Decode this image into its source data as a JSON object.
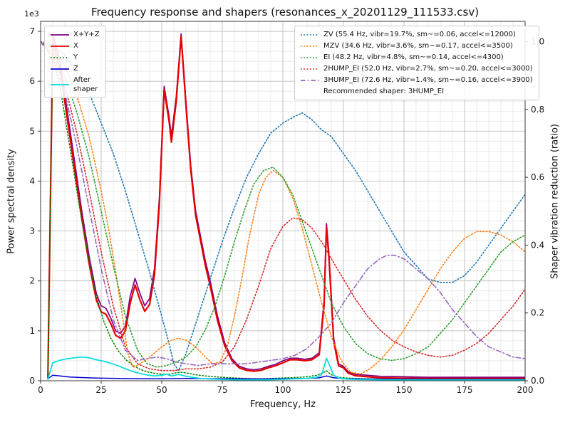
{
  "title": "Frequency response and shapers (resonances_x_20201129_111533.csv)",
  "axes": {
    "x": {
      "label": "Frequency, Hz",
      "min": 0,
      "max": 200,
      "major_ticks": [
        0,
        25,
        50,
        75,
        100,
        125,
        150,
        175,
        200
      ],
      "minor_step": 5
    },
    "y_left": {
      "label": "Power spectral density",
      "offset_text": "1e3",
      "min": 0,
      "max": 7200,
      "major_ticks": [
        0,
        1000,
        2000,
        3000,
        4000,
        5000,
        6000,
        7000
      ],
      "tick_labels": [
        "0",
        "1",
        "2",
        "3",
        "4",
        "5",
        "6",
        "7"
      ],
      "minor_step": 200
    },
    "y_right": {
      "label": "Shaper vibration reduction (ratio)",
      "min": 0,
      "max": 1.06,
      "major_ticks": [
        0,
        0.2,
        0.4,
        0.6,
        0.8,
        1.0
      ],
      "tick_labels": [
        "0.0",
        "0.2",
        "0.4",
        "0.6",
        "0.8",
        "1.0"
      ]
    }
  },
  "legend_psd": {
    "items": [
      {
        "label": "X+Y+Z",
        "color": "#800080",
        "dash": "solid"
      },
      {
        "label": "X",
        "color": "#e60000",
        "dash": "solid"
      },
      {
        "label": "Y",
        "color": "#008000",
        "dash": "dotted"
      },
      {
        "label": "Z",
        "color": "#0000cc",
        "dash": "solid"
      },
      {
        "label": "After\nshaper",
        "color": "#00dcdc",
        "dash": "solid"
      }
    ]
  },
  "legend_shapers": {
    "items": [
      {
        "label": "ZV (55.4 Hz, vibr=19.7%, sm~=0.06, accel<=12000)",
        "color": "#1f77b4",
        "dash": "dotted"
      },
      {
        "label": "MZV (34.6 Hz, vibr=3.6%, sm~=0.17, accel<=3500)",
        "color": "#ff7f0e",
        "dash": "dotted"
      },
      {
        "label": "EI (48.2 Hz, vibr=4.8%, sm~=0.14, accel<=4300)",
        "color": "#2ca02c",
        "dash": "dotted"
      },
      {
        "label": "2HUMP_EI (52.0 Hz, vibr=2.7%, sm~=0.20, accel<=3000)",
        "color": "#d62728",
        "dash": "dotted"
      },
      {
        "label": "3HUMP_EI (72.6 Hz, vibr=1.4%, sm~=0.16, accel<=3900)",
        "color": "#9467bd",
        "dash": "dashdot"
      },
      {
        "label": "Recommended shaper: 3HUMP_EI",
        "color": null,
        "dash": "none"
      }
    ]
  },
  "chart_data": {
    "type": "line",
    "title": "Frequency response and shapers (resonances_x_20201129_111533.csv)",
    "xlabel": "Frequency, Hz",
    "ylabel": "Power spectral density",
    "ylabel_right": "Shaper vibration reduction (ratio)",
    "xlim": [
      0,
      200
    ],
    "ylim_left": [
      0,
      7200
    ],
    "ylim_right": [
      0,
      1.06
    ],
    "grid": "major+minor",
    "legend_positions": {
      "psd": "upper left",
      "shapers": "upper right"
    },
    "recommended_shaper": "3HUMP_EI",
    "series": [
      {
        "name": "X+Y+Z",
        "axis": "left",
        "color": "#800080",
        "dash": "solid",
        "width": 1.7,
        "x": [
          3,
          5,
          8,
          11,
          14,
          17,
          20,
          23,
          25,
          27,
          29,
          31,
          33,
          35,
          37,
          39,
          41,
          43,
          45,
          47,
          49,
          51,
          53,
          54,
          56,
          58,
          60,
          62,
          64,
          66,
          68,
          70,
          73,
          76,
          79,
          82,
          85,
          88,
          91,
          94,
          97,
          100,
          103,
          106,
          109,
          112,
          115,
          117,
          118,
          119,
          121,
          123,
          125,
          127,
          130,
          135,
          140,
          150,
          160,
          175,
          200
        ],
        "y": [
          80,
          6950,
          6400,
          5400,
          4400,
          3400,
          2500,
          1750,
          1500,
          1450,
          1250,
          1000,
          950,
          1100,
          1700,
          2050,
          1750,
          1500,
          1650,
          2250,
          3650,
          5900,
          5300,
          4900,
          5700,
          6950,
          5600,
          4300,
          3400,
          2900,
          2400,
          2000,
          1300,
          760,
          440,
          290,
          240,
          220,
          240,
          290,
          330,
          400,
          450,
          450,
          430,
          450,
          560,
          1600,
          3150,
          2560,
          850,
          340,
          290,
          180,
          130,
          110,
          90,
          80,
          70,
          70,
          70
        ]
      },
      {
        "name": "X",
        "axis": "left",
        "color": "#e60000",
        "dash": "solid",
        "width": 2.2,
        "x": [
          3,
          5,
          8,
          11,
          14,
          17,
          20,
          23,
          25,
          27,
          29,
          31,
          33,
          35,
          37,
          39,
          41,
          43,
          45,
          47,
          49,
          51,
          53,
          54,
          56,
          58,
          60,
          62,
          64,
          66,
          68,
          70,
          73,
          76,
          79,
          82,
          85,
          88,
          91,
          94,
          97,
          100,
          103,
          106,
          109,
          112,
          115,
          117,
          118,
          119,
          121,
          123,
          125,
          127,
          130,
          135,
          140,
          150,
          160,
          175,
          200
        ],
        "y": [
          60,
          6800,
          6250,
          5250,
          4250,
          3250,
          2350,
          1620,
          1380,
          1330,
          1140,
          910,
          850,
          1000,
          1560,
          1920,
          1620,
          1390,
          1530,
          2120,
          3520,
          5830,
          5210,
          4780,
          5600,
          6900,
          5510,
          4210,
          3310,
          2810,
          2310,
          1900,
          1210,
          700,
          400,
          260,
          210,
          190,
          210,
          260,
          300,
          360,
          420,
          420,
          400,
          420,
          520,
          1500,
          3080,
          2480,
          780,
          300,
          260,
          150,
          100,
          80,
          60,
          50,
          45,
          45,
          45
        ]
      },
      {
        "name": "Y",
        "axis": "left",
        "color": "#008000",
        "dash": "dotted",
        "width": 1.5,
        "x": [
          3,
          5,
          8,
          11,
          14,
          17,
          20,
          23,
          26,
          29,
          32,
          35,
          38,
          41,
          44,
          47,
          50,
          53,
          56,
          58,
          61,
          64,
          68,
          72,
          76,
          80,
          85,
          90,
          95,
          100,
          105,
          110,
          114,
          117,
          118,
          120,
          123,
          126,
          130,
          140,
          150,
          165,
          180,
          200
        ],
        "y": [
          70,
          6500,
          5900,
          5000,
          4100,
          3200,
          2400,
          1700,
          1200,
          850,
          600,
          430,
          310,
          230,
          180,
          150,
          130,
          130,
          160,
          170,
          150,
          120,
          95,
          80,
          65,
          55,
          45,
          40,
          45,
          55,
          65,
          80,
          110,
          170,
          200,
          120,
          70,
          55,
          45,
          35,
          30,
          28,
          26,
          25
        ]
      },
      {
        "name": "Z",
        "axis": "left",
        "color": "#0000cc",
        "dash": "solid",
        "width": 1.5,
        "x": [
          3,
          5,
          8,
          12,
          16,
          20,
          25,
          30,
          40,
          50,
          60,
          70,
          80,
          90,
          100,
          110,
          115,
          118,
          121,
          125,
          135,
          150,
          175,
          200
        ],
        "y": [
          40,
          110,
          95,
          75,
          65,
          58,
          52,
          48,
          42,
          40,
          45,
          42,
          38,
          36,
          40,
          48,
          58,
          95,
          60,
          42,
          34,
          30,
          28,
          28
        ]
      },
      {
        "name": "After shaper",
        "axis": "left",
        "color": "#00dcdc",
        "dash": "solid",
        "width": 1.7,
        "x": [
          3,
          5,
          8,
          11,
          14,
          17,
          20,
          23,
          26,
          29,
          32,
          35,
          38,
          41,
          44,
          47,
          50,
          52,
          54,
          57,
          60,
          63,
          66,
          70,
          75,
          80,
          85,
          90,
          95,
          100,
          105,
          110,
          114,
          116,
          117,
          118,
          119,
          121,
          123,
          126,
          130,
          140,
          150,
          175,
          200
        ],
        "y": [
          30,
          360,
          410,
          440,
          460,
          475,
          460,
          420,
          390,
          350,
          300,
          240,
          185,
          145,
          115,
          95,
          110,
          130,
          95,
          125,
          90,
          65,
          45,
          35,
          25,
          18,
          15,
          15,
          20,
          28,
          38,
          48,
          70,
          120,
          280,
          450,
          340,
          110,
          55,
          35,
          25,
          18,
          15,
          15,
          15
        ]
      },
      {
        "name": "ZV",
        "axis": "right",
        "color": "#1f77b4",
        "dash": "dotted",
        "width": 1.6,
        "x": [
          0,
          5,
          10,
          15,
          20,
          25,
          30,
          35,
          40,
          45,
          50,
          53,
          55,
          57,
          60,
          65,
          70,
          75,
          80,
          85,
          90,
          95,
          100,
          105,
          108,
          112,
          116,
          120,
          125,
          130,
          135,
          140,
          145,
          150,
          155,
          160,
          165,
          170,
          175,
          180,
          185,
          190,
          195,
          200
        ],
        "y": [
          1.0,
          0.99,
          0.96,
          0.91,
          0.85,
          0.76,
          0.67,
          0.56,
          0.44,
          0.32,
          0.19,
          0.11,
          0.05,
          0.03,
          0.08,
          0.19,
          0.3,
          0.41,
          0.51,
          0.6,
          0.67,
          0.73,
          0.76,
          0.78,
          0.79,
          0.77,
          0.74,
          0.72,
          0.67,
          0.62,
          0.56,
          0.5,
          0.44,
          0.38,
          0.34,
          0.3,
          0.29,
          0.29,
          0.31,
          0.35,
          0.4,
          0.45,
          0.5,
          0.55
        ]
      },
      {
        "name": "MZV",
        "axis": "right",
        "color": "#ff7f0e",
        "dash": "dotted",
        "width": 1.6,
        "x": [
          0,
          5,
          10,
          15,
          20,
          25,
          28,
          31,
          34,
          36,
          38,
          40,
          45,
          50,
          54,
          57,
          60,
          64,
          68,
          71,
          74,
          77,
          80,
          83,
          86,
          90,
          93,
          96,
          100,
          104,
          108,
          112,
          116,
          120,
          124,
          128,
          132,
          136,
          140,
          145,
          150,
          155,
          160,
          165,
          170,
          175,
          180,
          185,
          190,
          195,
          200
        ],
        "y": [
          1.0,
          0.98,
          0.93,
          0.84,
          0.72,
          0.56,
          0.45,
          0.32,
          0.18,
          0.08,
          0.04,
          0.045,
          0.07,
          0.1,
          0.12,
          0.125,
          0.12,
          0.1,
          0.07,
          0.05,
          0.055,
          0.1,
          0.19,
          0.3,
          0.42,
          0.55,
          0.6,
          0.62,
          0.6,
          0.54,
          0.45,
          0.34,
          0.23,
          0.13,
          0.06,
          0.025,
          0.02,
          0.035,
          0.06,
          0.1,
          0.15,
          0.21,
          0.27,
          0.33,
          0.38,
          0.42,
          0.44,
          0.44,
          0.43,
          0.41,
          0.38
        ]
      },
      {
        "name": "EI",
        "axis": "right",
        "color": "#2ca02c",
        "dash": "dotted",
        "width": 1.6,
        "x": [
          0,
          5,
          10,
          15,
          20,
          25,
          30,
          35,
          40,
          44,
          48,
          52,
          56,
          60,
          64,
          68,
          72,
          76,
          80,
          84,
          88,
          92,
          96,
          100,
          104,
          108,
          112,
          116,
          120,
          125,
          130,
          135,
          140,
          145,
          150,
          155,
          160,
          165,
          170,
          175,
          180,
          185,
          190,
          195,
          200
        ],
        "y": [
          1.0,
          0.97,
          0.9,
          0.79,
          0.66,
          0.5,
          0.34,
          0.19,
          0.09,
          0.05,
          0.04,
          0.045,
          0.055,
          0.07,
          0.1,
          0.15,
          0.22,
          0.31,
          0.41,
          0.5,
          0.58,
          0.62,
          0.63,
          0.6,
          0.55,
          0.47,
          0.39,
          0.31,
          0.23,
          0.16,
          0.11,
          0.08,
          0.065,
          0.06,
          0.065,
          0.08,
          0.1,
          0.14,
          0.18,
          0.23,
          0.28,
          0.33,
          0.38,
          0.41,
          0.43
        ]
      },
      {
        "name": "2HUMP_EI",
        "axis": "right",
        "color": "#d62728",
        "dash": "dotted",
        "width": 1.6,
        "x": [
          0,
          5,
          10,
          15,
          20,
          25,
          30,
          35,
          40,
          45,
          50,
          55,
          60,
          65,
          70,
          75,
          80,
          85,
          90,
          95,
          100,
          104,
          108,
          112,
          116,
          120,
          125,
          130,
          135,
          140,
          145,
          150,
          155,
          160,
          165,
          170,
          175,
          180,
          185,
          190,
          195,
          200
        ],
        "y": [
          1.0,
          0.96,
          0.87,
          0.73,
          0.56,
          0.38,
          0.22,
          0.1,
          0.05,
          0.035,
          0.03,
          0.03,
          0.035,
          0.035,
          0.04,
          0.055,
          0.1,
          0.18,
          0.28,
          0.39,
          0.455,
          0.48,
          0.475,
          0.45,
          0.41,
          0.36,
          0.3,
          0.24,
          0.19,
          0.15,
          0.12,
          0.1,
          0.085,
          0.075,
          0.07,
          0.075,
          0.09,
          0.11,
          0.14,
          0.18,
          0.22,
          0.27
        ]
      },
      {
        "name": "3HUMP_EI",
        "axis": "right",
        "color": "#9467bd",
        "dash": "dashdot",
        "width": 1.6,
        "x": [
          0,
          5,
          10,
          15,
          20,
          25,
          30,
          35,
          40,
          44,
          48,
          52,
          56,
          60,
          65,
          70,
          75,
          80,
          85,
          90,
          95,
          100,
          105,
          110,
          115,
          120,
          125,
          130,
          135,
          140,
          143,
          146,
          150,
          155,
          160,
          165,
          170,
          175,
          180,
          185,
          190,
          195,
          200
        ],
        "y": [
          1.0,
          0.95,
          0.85,
          0.69,
          0.51,
          0.33,
          0.18,
          0.09,
          0.06,
          0.065,
          0.07,
          0.065,
          0.055,
          0.05,
          0.045,
          0.05,
          0.05,
          0.05,
          0.05,
          0.055,
          0.06,
          0.065,
          0.075,
          0.095,
          0.13,
          0.17,
          0.23,
          0.28,
          0.33,
          0.36,
          0.37,
          0.37,
          0.36,
          0.33,
          0.3,
          0.26,
          0.21,
          0.17,
          0.13,
          0.1,
          0.085,
          0.07,
          0.065
        ]
      }
    ]
  }
}
